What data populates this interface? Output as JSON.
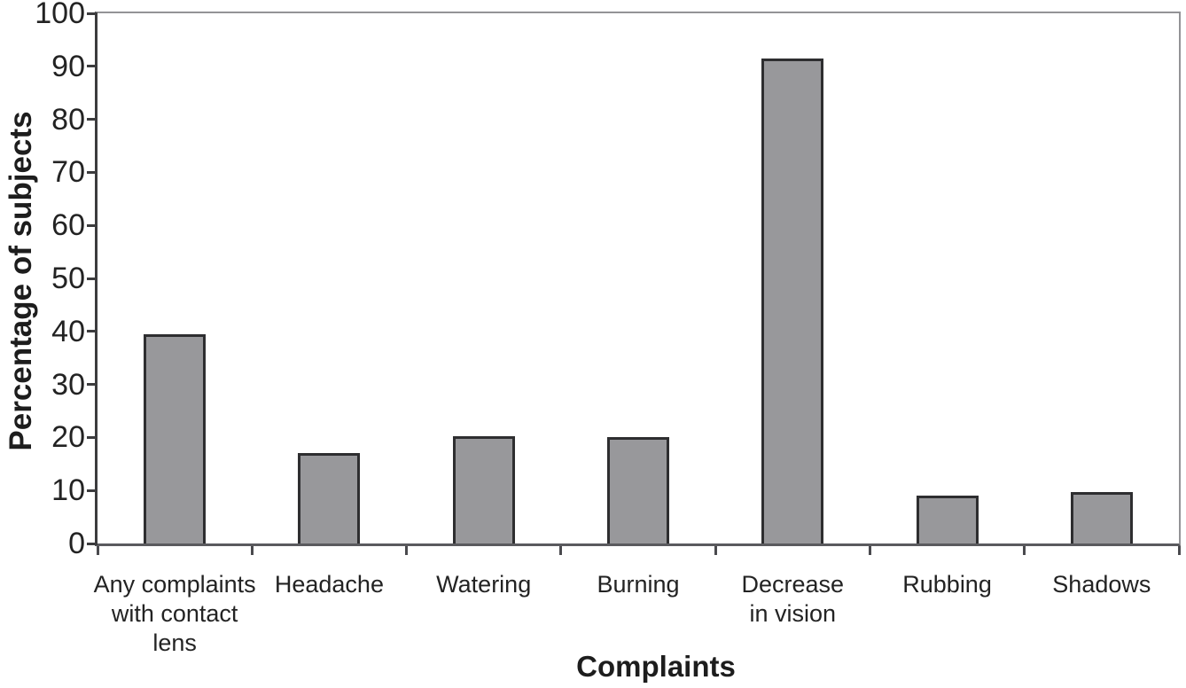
{
  "chart_data": {
    "type": "bar",
    "title": "",
    "xlabel": "Complaints",
    "ylabel": "Percentage of subjects",
    "categories": [
      "Any complaints with contact lens",
      "Headache",
      "Watering",
      "Burning",
      "Decrease in vision",
      "Rubbing",
      "Shadows"
    ],
    "category_display": [
      "Any complaints\nwith contact\nlens",
      "Headache",
      "Watering",
      "Burning",
      "Decrease\nin vision",
      "Rubbing",
      "Shadows"
    ],
    "values": [
      39.5,
      17,
      20.3,
      20,
      91.5,
      9,
      9.7
    ],
    "ylim": [
      0,
      100
    ],
    "yticks": [
      0,
      10,
      20,
      30,
      40,
      50,
      60,
      70,
      80,
      90,
      100
    ],
    "grid": false,
    "legend": null,
    "bar_color": "#98989b",
    "bar_border_color": "#2e2e30",
    "axis_color": "#3c3c3e",
    "box_color": "#939396",
    "text_color": "#232323"
  }
}
